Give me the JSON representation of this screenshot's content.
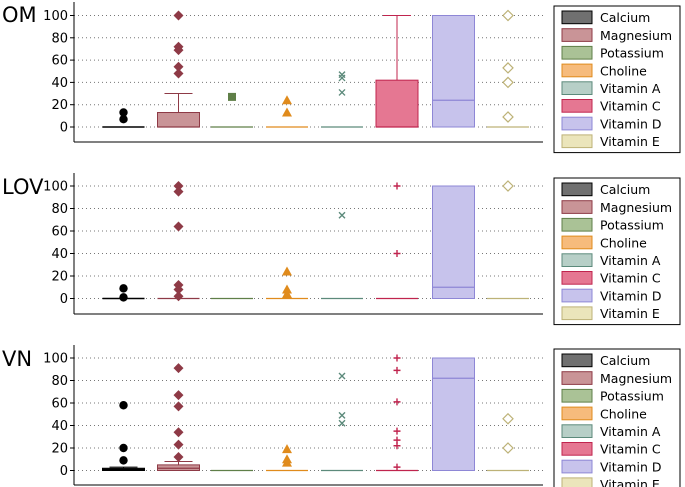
{
  "chart_data": [
    {
      "type": "box",
      "title": "OM",
      "ylim": [
        0,
        110
      ],
      "yticks": [
        0,
        20,
        40,
        60,
        80,
        100
      ],
      "categories": [
        "Calcium",
        "Magnesium",
        "Potassium",
        "Choline",
        "Vitamin A",
        "Vitamin C",
        "Vitamin D",
        "Vitamin E"
      ],
      "boxes": [
        {
          "q1": 0,
          "median": 0,
          "q3": 0,
          "whisker_low": 0,
          "whisker_high": 0,
          "outliers": [
            13,
            7
          ]
        },
        {
          "q1": 0,
          "median": 0,
          "q3": 13,
          "whisker_low": 0,
          "whisker_high": 30,
          "outliers": [
            100,
            72,
            69,
            54,
            48
          ]
        },
        {
          "q1": 0,
          "median": 0,
          "q3": 0,
          "whisker_low": 0,
          "whisker_high": 0,
          "outliers": [
            27
          ]
        },
        {
          "q1": 0,
          "median": 0,
          "q3": 0,
          "whisker_low": 0,
          "whisker_high": 0,
          "outliers": [
            24,
            13
          ]
        },
        {
          "q1": 0,
          "median": 0,
          "q3": 0,
          "whisker_low": 0,
          "whisker_high": 0,
          "outliers": [
            47,
            44,
            31
          ]
        },
        {
          "q1": 0,
          "median": 0,
          "q3": 42,
          "whisker_low": 0,
          "whisker_high": 100,
          "outliers": []
        },
        {
          "q1": 0,
          "median": 24,
          "q3": 100,
          "whisker_low": 0,
          "whisker_high": 100,
          "outliers": []
        },
        {
          "q1": 0,
          "median": 0,
          "q3": 0,
          "whisker_low": 0,
          "whisker_high": 0,
          "outliers": [
            100,
            53,
            40,
            9
          ]
        }
      ]
    },
    {
      "type": "box",
      "title": "LOV",
      "ylim": [
        0,
        110
      ],
      "yticks": [
        0,
        20,
        40,
        60,
        80,
        100
      ],
      "categories": [
        "Calcium",
        "Magnesium",
        "Potassium",
        "Choline",
        "Vitamin A",
        "Vitamin C",
        "Vitamin D",
        "Vitamin E"
      ],
      "boxes": [
        {
          "q1": 0,
          "median": 0,
          "q3": 0,
          "whisker_low": 0,
          "whisker_high": 0,
          "outliers": [
            9,
            1
          ]
        },
        {
          "q1": 0,
          "median": 0,
          "q3": 0,
          "whisker_low": 0,
          "whisker_high": 0,
          "outliers": [
            100,
            95,
            64,
            12,
            8,
            2
          ]
        },
        {
          "q1": 0,
          "median": 0,
          "q3": 0,
          "whisker_low": 0,
          "whisker_high": 0,
          "outliers": []
        },
        {
          "q1": 0,
          "median": 0,
          "q3": 0,
          "whisker_low": 0,
          "whisker_high": 0,
          "outliers": [
            24,
            8,
            4
          ]
        },
        {
          "q1": 0,
          "median": 0,
          "q3": 0,
          "whisker_low": 0,
          "whisker_high": 0,
          "outliers": [
            74
          ]
        },
        {
          "q1": 0,
          "median": 0,
          "q3": 0,
          "whisker_low": 0,
          "whisker_high": 0,
          "outliers": [
            100,
            40
          ]
        },
        {
          "q1": 0,
          "median": 10,
          "q3": 100,
          "whisker_low": 0,
          "whisker_high": 100,
          "outliers": []
        },
        {
          "q1": 0,
          "median": 0,
          "q3": 0,
          "whisker_low": 0,
          "whisker_high": 0,
          "outliers": [
            100
          ]
        }
      ]
    },
    {
      "type": "box",
      "title": "VN",
      "ylim": [
        0,
        110
      ],
      "yticks": [
        0,
        20,
        40,
        60,
        80,
        100
      ],
      "categories": [
        "Calcium",
        "Magnesium",
        "Potassium",
        "Choline",
        "Vitamin A",
        "Vitamin C",
        "Vitamin D",
        "Vitamin E"
      ],
      "boxes": [
        {
          "q1": 0,
          "median": 1,
          "q3": 2,
          "whisker_low": 0,
          "whisker_high": 3,
          "outliers": [
            58,
            20,
            9
          ]
        },
        {
          "q1": 0,
          "median": 2,
          "q3": 5,
          "whisker_low": 0,
          "whisker_high": 8,
          "outliers": [
            91,
            67,
            57,
            34,
            23,
            12
          ]
        },
        {
          "q1": 0,
          "median": 0,
          "q3": 0,
          "whisker_low": 0,
          "whisker_high": 0,
          "outliers": []
        },
        {
          "q1": 0,
          "median": 0,
          "q3": 0,
          "whisker_low": 0,
          "whisker_high": 0,
          "outliers": [
            19,
            10,
            7
          ]
        },
        {
          "q1": 0,
          "median": 0,
          "q3": 0,
          "whisker_low": 0,
          "whisker_high": 0,
          "outliers": [
            84,
            49,
            42
          ]
        },
        {
          "q1": 0,
          "median": 0,
          "q3": 0,
          "whisker_low": 0,
          "whisker_high": 0,
          "outliers": [
            100,
            89,
            61,
            35,
            27,
            22,
            3
          ]
        },
        {
          "q1": 0,
          "median": 82,
          "q3": 100,
          "whisker_low": 0,
          "whisker_high": 100,
          "outliers": []
        },
        {
          "q1": 0,
          "median": 0,
          "q3": 0,
          "whisker_low": 0,
          "whisker_high": 0,
          "outliers": [
            46,
            20
          ]
        }
      ]
    }
  ],
  "legend": [
    {
      "label": "Calcium",
      "fill": "#707070",
      "stroke": "#000000",
      "marker": "circle"
    },
    {
      "label": "Magnesium",
      "fill": "#c99497",
      "stroke": "#8e3a46",
      "marker": "diamond"
    },
    {
      "label": "Potassium",
      "fill": "#aac296",
      "stroke": "#5f7f48",
      "marker": "square"
    },
    {
      "label": "Choline",
      "fill": "#f6bb7c",
      "stroke": "#e08b1c",
      "marker": "triangle"
    },
    {
      "label": "Vitamin A",
      "fill": "#b7cfc7",
      "stroke": "#5c8a7b",
      "marker": "x"
    },
    {
      "label": "Vitamin C",
      "fill": "#e57792",
      "stroke": "#c0244e",
      "marker": "plus"
    },
    {
      "label": "Vitamin D",
      "fill": "#c7c3ec",
      "stroke": "#8e87d6",
      "marker": "none"
    },
    {
      "label": "Vitamin E",
      "fill": "#ebe5bb",
      "stroke": "#bdb277",
      "marker": "hollow-diamond"
    }
  ]
}
